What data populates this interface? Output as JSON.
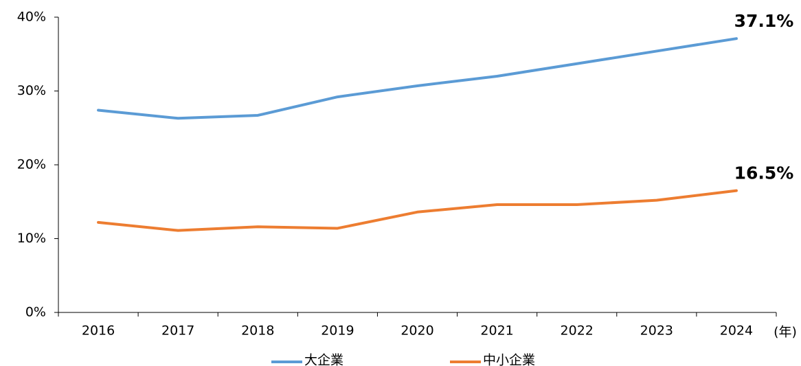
{
  "chart_data": {
    "type": "line",
    "x_label": "(年)",
    "categories": [
      "2016",
      "2017",
      "2018",
      "2019",
      "2020",
      "2021",
      "2022",
      "2023",
      "2024"
    ],
    "series": [
      {
        "name": "大企業",
        "color": "#5b9bd5",
        "values": [
          27.4,
          26.3,
          26.7,
          29.2,
          30.7,
          32.0,
          33.7,
          35.4,
          37.1
        ],
        "value_labels": [
          null,
          null,
          null,
          null,
          null,
          null,
          null,
          null,
          "37.1%"
        ]
      },
      {
        "name": "中小企業",
        "color": "#ed7d31",
        "values": [
          12.2,
          11.1,
          11.6,
          11.4,
          13.6,
          14.6,
          14.6,
          15.2,
          16.5
        ],
        "value_labels": [
          null,
          null,
          null,
          null,
          null,
          null,
          null,
          null,
          "16.5%"
        ]
      }
    ],
    "ylim": [
      0,
      40
    ],
    "yticks": [
      {
        "value": 0,
        "label": "0%"
      },
      {
        "value": 10,
        "label": "10%"
      },
      {
        "value": 20,
        "label": "20%"
      },
      {
        "value": 30,
        "label": "30%"
      },
      {
        "value": 40,
        "label": "40%"
      }
    ],
    "grid": false
  }
}
